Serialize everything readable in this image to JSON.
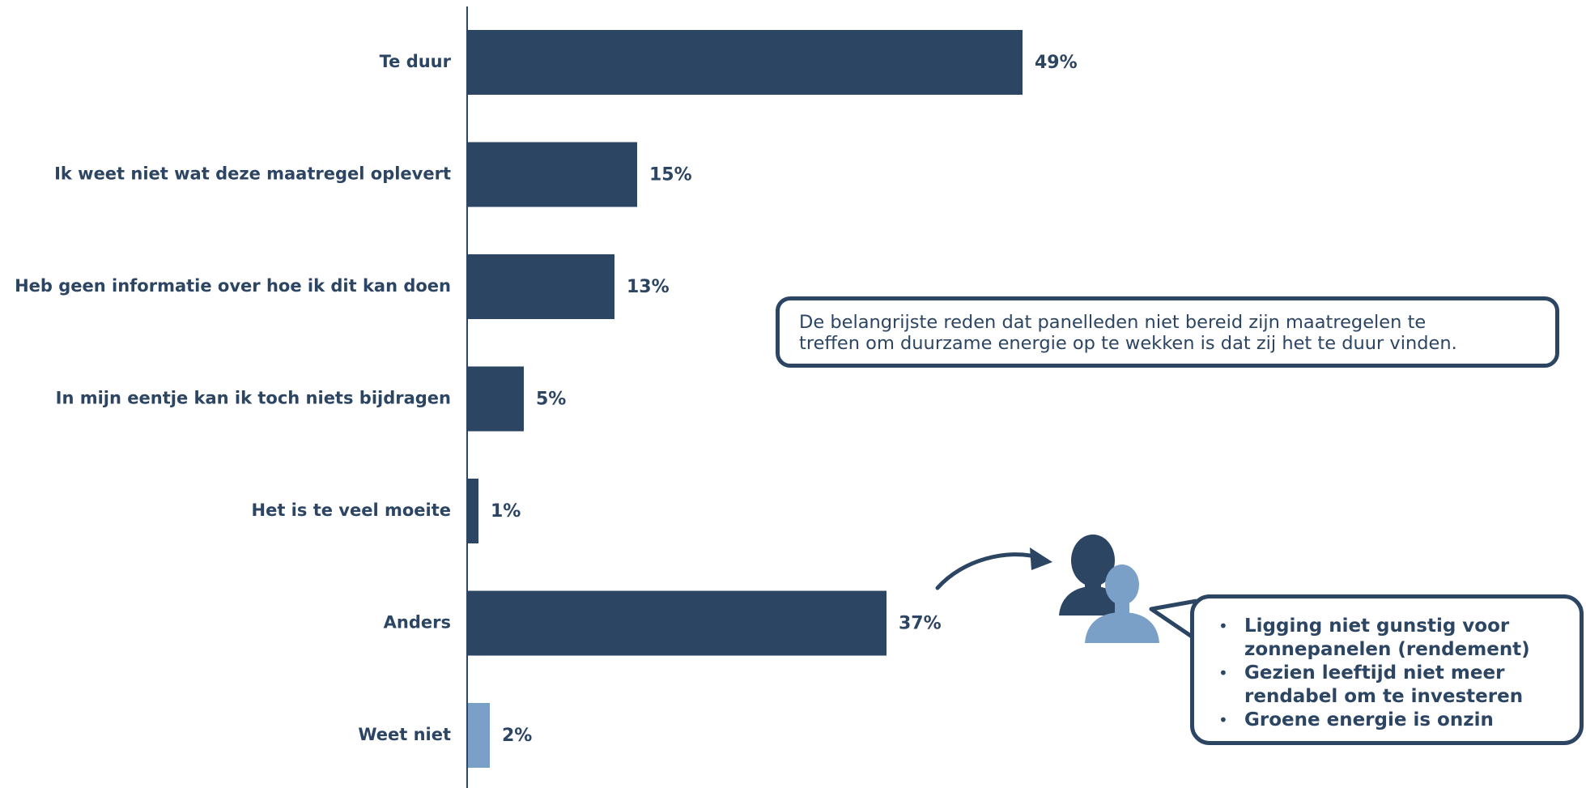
{
  "chart_data": {
    "type": "bar",
    "orientation": "horizontal",
    "categories": [
      "Te duur",
      "Ik weet niet wat deze maatregel oplevert",
      "Heb geen informatie over hoe ik dit kan doen",
      "In mijn eentje kan ik toch niets bijdragen",
      "Het is te veel moeite",
      "Anders",
      "Weet niet"
    ],
    "values": [
      49,
      15,
      13,
      5,
      1,
      37,
      2
    ],
    "value_labels": [
      "49%",
      "15%",
      "13%",
      "5%",
      "1%",
      "37%",
      "2%"
    ],
    "unit": "%",
    "xlim": [
      0,
      100
    ],
    "grid": false,
    "colors": {
      "primary": "#2c4563",
      "highlight": "#7aa0c8"
    },
    "bar_colors": [
      "#2c4563",
      "#2c4563",
      "#2c4563",
      "#2c4563",
      "#2c4563",
      "#2c4563",
      "#7aa0c8"
    ]
  },
  "callout_top": {
    "line1": "De belangrijste reden dat panelleden niet bereid zijn maatregelen te",
    "line2": "treffen om duurzame energie op te wekken is dat zij het te duur vinden."
  },
  "callout_bottom": {
    "items": [
      "Ligging niet gunstig voor zonnepanelen (rendement)",
      "Gezien leeftijd niet meer rendabel om te investeren",
      "Groene energie is onzin"
    ],
    "bullet": "•"
  },
  "icons": {
    "people": "people-icon",
    "arrow": "curved-arrow-icon"
  }
}
